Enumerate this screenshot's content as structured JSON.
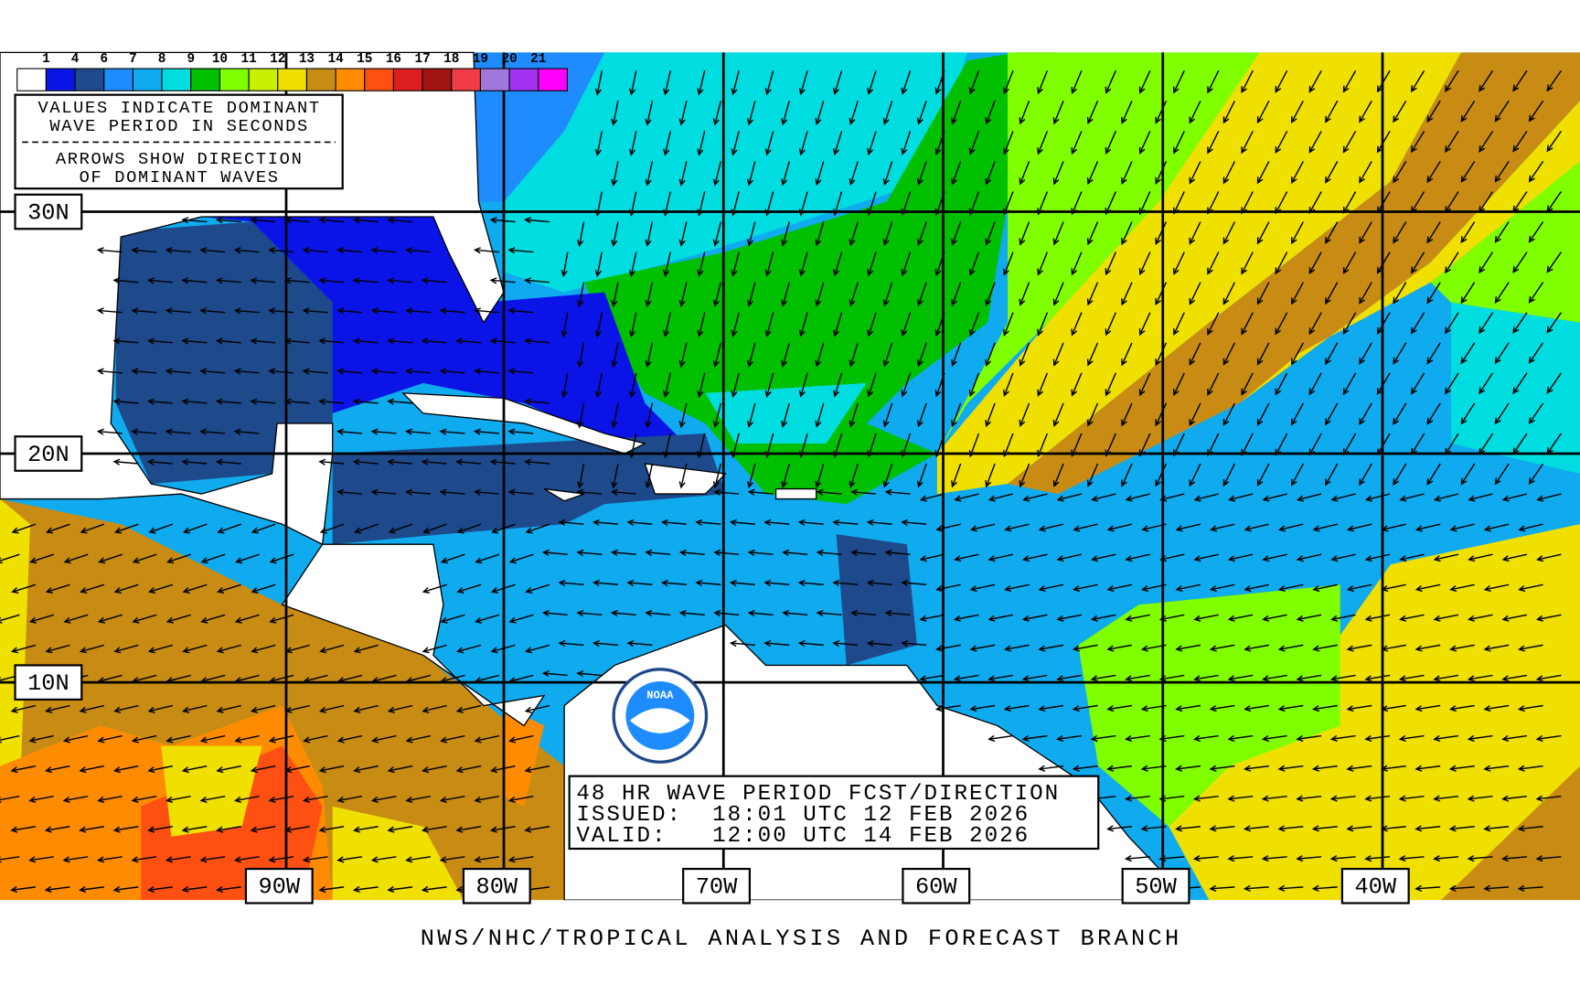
{
  "legend": {
    "labels": [
      "1",
      "4",
      "6",
      "7",
      "8",
      "9",
      "10",
      "11",
      "12",
      "13",
      "14",
      "15",
      "16",
      "17",
      "18",
      "19",
      "20",
      "21"
    ],
    "colors": [
      "#ffffff",
      "#0a14e6",
      "#1e4a8c",
      "#1e8cff",
      "#10aaee",
      "#00dde0",
      "#00c000",
      "#80ff00",
      "#c8f000",
      "#f0e000",
      "#c88c14",
      "#ff8c00",
      "#ff5014",
      "#dc1e1e",
      "#a01414",
      "#f03c46",
      "#a078dc",
      "#a032f0",
      "#ff00ff"
    ]
  },
  "notes": {
    "period": [
      "VALUES INDICATE DOMINANT",
      "WAVE PERIOD IN SECONDS"
    ],
    "arrows": [
      "ARROWS SHOW DIRECTION",
      "OF DOMINANT WAVES"
    ]
  },
  "latitudes": [
    "30N",
    "20N",
    "10N"
  ],
  "longitudes": [
    "90W",
    "80W",
    "70W",
    "60W",
    "50W",
    "40W"
  ],
  "product": [
    "48 HR WAVE PERIOD FCST/DIRECTION",
    "ISSUED:  18:01 UTC 12 FEB 2026",
    "VALID:   12:00 UTC 14 FEB 2026"
  ],
  "logo": "NOAA",
  "footer": "NWS/NHC/TROPICAL ANALYSIS AND FORECAST BRANCH"
}
